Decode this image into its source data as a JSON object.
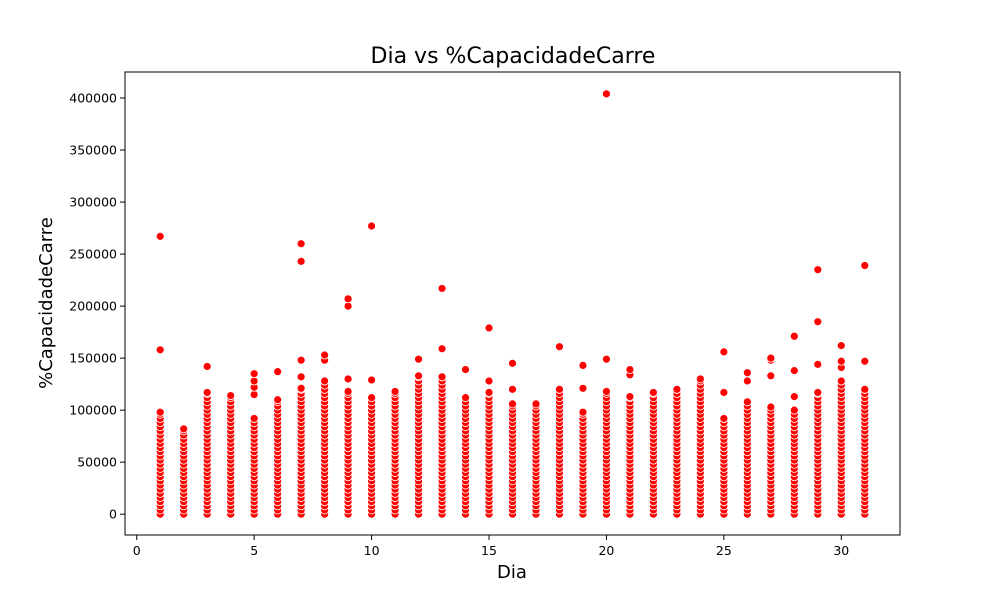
{
  "chart_data": {
    "type": "scatter",
    "title": "Dia vs %CapacidadeCarre",
    "xlabel": "Dia",
    "ylabel": "%CapacidadeCarre",
    "xlim": [
      -0.5,
      32.5
    ],
    "ylim": [
      -20000,
      425000
    ],
    "xticks": [
      0,
      5,
      10,
      15,
      20,
      25,
      30
    ],
    "xtick_labels": [
      "0",
      "5",
      "10",
      "15",
      "20",
      "25",
      "30"
    ],
    "yticks": [
      0,
      50000,
      100000,
      150000,
      200000,
      250000,
      300000,
      350000,
      400000
    ],
    "ytick_labels": [
      "0",
      "50000",
      "100000",
      "150000",
      "200000",
      "250000",
      "300000",
      "350000",
      "400000"
    ],
    "grid": false,
    "marker_color": "#ff0000",
    "series": [
      {
        "points": [
          {
            "x": 1,
            "columnMax": 98000,
            "extra": [
              158000,
              267000
            ]
          },
          {
            "x": 2,
            "columnMax": 82000,
            "extra": []
          },
          {
            "x": 3,
            "columnMax": 117000,
            "extra": [
              142000
            ]
          },
          {
            "x": 4,
            "columnMax": 114000,
            "extra": []
          },
          {
            "x": 5,
            "columnMax": 92000,
            "extra": [
              115000,
              122000,
              128000,
              135000
            ]
          },
          {
            "x": 6,
            "columnMax": 110000,
            "extra": [
              137000
            ]
          },
          {
            "x": 7,
            "columnMax": 121000,
            "extra": [
              132000,
              148000,
              243000,
              260000
            ]
          },
          {
            "x": 8,
            "columnMax": 128000,
            "extra": [
              148000,
              153000
            ]
          },
          {
            "x": 9,
            "columnMax": 118000,
            "extra": [
              130000,
              200000,
              207000
            ]
          },
          {
            "x": 10,
            "columnMax": 112000,
            "extra": [
              129000,
              277000
            ]
          },
          {
            "x": 11,
            "columnMax": 118000,
            "extra": []
          },
          {
            "x": 12,
            "columnMax": 133000,
            "extra": [
              149000
            ]
          },
          {
            "x": 13,
            "columnMax": 132000,
            "extra": [
              159000,
              217000
            ]
          },
          {
            "x": 14,
            "columnMax": 112000,
            "extra": [
              139000
            ]
          },
          {
            "x": 15,
            "columnMax": 117000,
            "extra": [
              128000,
              179000
            ]
          },
          {
            "x": 16,
            "columnMax": 106000,
            "extra": [
              120000,
              145000
            ]
          },
          {
            "x": 17,
            "columnMax": 106000,
            "extra": []
          },
          {
            "x": 18,
            "columnMax": 120000,
            "extra": [
              161000
            ]
          },
          {
            "x": 19,
            "columnMax": 98000,
            "extra": [
              121000,
              143000
            ]
          },
          {
            "x": 20,
            "columnMax": 118000,
            "extra": [
              149000,
              404000
            ]
          },
          {
            "x": 21,
            "columnMax": 113000,
            "extra": [
              134000,
              139000
            ]
          },
          {
            "x": 22,
            "columnMax": 117000,
            "extra": []
          },
          {
            "x": 23,
            "columnMax": 120000,
            "extra": []
          },
          {
            "x": 24,
            "columnMax": 130000,
            "extra": []
          },
          {
            "x": 25,
            "columnMax": 92000,
            "extra": [
              117000,
              156000
            ]
          },
          {
            "x": 26,
            "columnMax": 108000,
            "extra": [
              128000,
              136000
            ]
          },
          {
            "x": 27,
            "columnMax": 103000,
            "extra": [
              133000,
              148000,
              150000
            ]
          },
          {
            "x": 28,
            "columnMax": 100000,
            "extra": [
              113000,
              138000,
              171000
            ]
          },
          {
            "x": 29,
            "columnMax": 117000,
            "extra": [
              144000,
              185000,
              235000
            ]
          },
          {
            "x": 30,
            "columnMax": 128000,
            "extra": [
              141000,
              147000,
              162000
            ]
          },
          {
            "x": 31,
            "columnMax": 120000,
            "extra": [
              147000,
              239000
            ]
          }
        ]
      }
    ]
  }
}
